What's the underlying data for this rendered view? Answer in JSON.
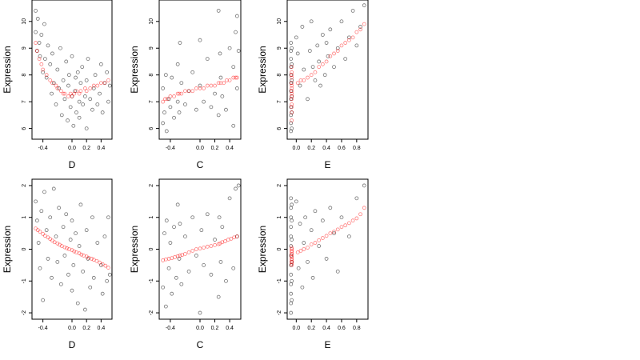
{
  "chart_data": [
    {
      "type": "scatter",
      "xlabel": "D",
      "ylabel": "Expression",
      "xlim": [
        -0.55,
        0.55
      ],
      "ylim": [
        5.6,
        10.8
      ],
      "xticks": [
        -0.4,
        0.0,
        0.2,
        0.4
      ],
      "xtick_labels": [
        "-0.4",
        "0.0",
        "0.2",
        "0.4"
      ],
      "yticks": [
        6,
        7,
        8,
        9,
        10
      ],
      "ytick_labels": [
        "6",
        "7",
        "8",
        "9",
        "10"
      ],
      "series": [
        {
          "color": "#000000",
          "x": [
            -0.5,
            -0.5,
            -0.48,
            -0.47,
            -0.45,
            -0.44,
            -0.42,
            -0.4,
            -0.38,
            -0.37,
            -0.35,
            -0.33,
            -0.3,
            -0.28,
            -0.27,
            -0.25,
            -0.22,
            -0.2,
            -0.18,
            -0.16,
            -0.14,
            -0.12,
            -0.1,
            -0.08,
            -0.06,
            -0.05,
            -0.04,
            -0.02,
            0.0,
            0.0,
            0.02,
            0.04,
            0.05,
            0.06,
            0.08,
            0.1,
            0.1,
            0.12,
            0.14,
            0.15,
            0.18,
            0.2,
            0.2,
            0.22,
            0.25,
            0.28,
            0.3,
            0.32,
            0.35,
            0.38,
            0.4,
            0.42,
            0.45,
            0.48,
            0.5,
            0.52
          ],
          "y": [
            10.4,
            9.6,
            8.9,
            10.1,
            9.2,
            8.7,
            9.5,
            8.1,
            9.9,
            8.6,
            7.9,
            9.1,
            8.4,
            7.3,
            8.8,
            7.7,
            6.9,
            8.2,
            7.5,
            9.0,
            6.5,
            7.8,
            7.1,
            8.5,
            6.3,
            7.6,
            8.0,
            6.8,
            7.2,
            8.7,
            6.1,
            7.4,
            7.9,
            6.6,
            8.1,
            7.0,
            6.4,
            7.7,
            8.3,
            6.9,
            7.2,
            6.0,
            7.8,
            8.6,
            7.1,
            6.7,
            7.5,
            8.0,
            6.9,
            7.3,
            8.4,
            6.6,
            7.7,
            8.1,
            7.0,
            7.6
          ]
        },
        {
          "color": "#ff0000",
          "x": [
            -0.5,
            -0.48,
            -0.45,
            -0.42,
            -0.4,
            -0.35,
            -0.3,
            -0.27,
            -0.22,
            -0.2,
            -0.15,
            -0.12,
            -0.1,
            -0.05,
            -0.02,
            0.0,
            0.03,
            0.06,
            0.1,
            0.12,
            0.18,
            0.2,
            0.25,
            0.3,
            0.35,
            0.4,
            0.45,
            0.5
          ],
          "y": [
            9.2,
            8.9,
            8.6,
            8.4,
            8.2,
            8.0,
            7.8,
            7.7,
            7.6,
            7.5,
            7.4,
            7.3,
            7.3,
            7.2,
            7.3,
            7.2,
            7.3,
            7.4,
            7.3,
            7.4,
            7.5,
            7.4,
            7.5,
            7.6,
            7.6,
            7.7,
            7.7,
            7.8
          ]
        }
      ]
    },
    {
      "type": "scatter",
      "xlabel": "C",
      "ylabel": "Expression",
      "xlim": [
        -0.55,
        0.55
      ],
      "ylim": [
        5.6,
        10.8
      ],
      "xticks": [
        -0.4,
        0.0,
        0.2,
        0.4
      ],
      "xtick_labels": [
        "-0.4",
        "0.0",
        "0.2",
        "0.4"
      ],
      "yticks": [
        6,
        7,
        8,
        9,
        10
      ],
      "ytick_labels": [
        "6",
        "7",
        "8",
        "9",
        "10"
      ],
      "series": [
        {
          "color": "#000000",
          "x": [
            -0.5,
            -0.5,
            -0.48,
            -0.46,
            -0.45,
            -0.42,
            -0.4,
            -0.38,
            -0.35,
            -0.3,
            -0.3,
            -0.28,
            -0.27,
            -0.25,
            -0.2,
            -0.15,
            -0.1,
            -0.05,
            0.0,
            0.0,
            0.05,
            0.1,
            0.15,
            0.2,
            0.25,
            0.25,
            0.27,
            0.28,
            0.3,
            0.35,
            0.4,
            0.45,
            0.45,
            0.48,
            0.5,
            0.5,
            0.52
          ],
          "y": [
            6.2,
            7.5,
            6.6,
            8.0,
            5.9,
            7.1,
            6.8,
            7.9,
            6.4,
            8.4,
            7.0,
            6.6,
            9.2,
            7.7,
            6.9,
            7.4,
            8.1,
            6.7,
            7.6,
            9.3,
            7.0,
            8.6,
            6.8,
            7.3,
            10.4,
            6.5,
            8.8,
            7.9,
            7.2,
            6.7,
            9.0,
            6.1,
            8.3,
            9.6,
            10.2,
            7.5,
            8.9
          ]
        },
        {
          "color": "#ff0000",
          "x": [
            -0.5,
            -0.47,
            -0.44,
            -0.4,
            -0.35,
            -0.3,
            -0.28,
            -0.25,
            -0.2,
            -0.15,
            -0.1,
            -0.05,
            0.0,
            0.05,
            0.1,
            0.15,
            0.2,
            0.25,
            0.28,
            0.32,
            0.36,
            0.4,
            0.45,
            0.48,
            0.5
          ],
          "y": [
            7.0,
            7.1,
            7.1,
            7.2,
            7.2,
            7.3,
            7.3,
            7.3,
            7.4,
            7.4,
            7.4,
            7.5,
            7.5,
            7.5,
            7.6,
            7.6,
            7.6,
            7.7,
            7.7,
            7.7,
            7.8,
            7.8,
            7.9,
            7.9,
            7.9
          ]
        }
      ]
    },
    {
      "type": "scatter",
      "xlabel": "E",
      "ylabel": "Expression",
      "xlim": [
        -0.12,
        0.95
      ],
      "ylim": [
        5.6,
        10.8
      ],
      "xticks": [
        0.0,
        0.2,
        0.4,
        0.6,
        0.8
      ],
      "xtick_labels": [
        "0.0",
        "0.2",
        "0.4",
        "0.6",
        "0.8"
      ],
      "yticks": [
        6,
        7,
        8,
        9,
        10
      ],
      "ytick_labels": [
        "6",
        "7",
        "8",
        "9",
        "10"
      ],
      "series": [
        {
          "color": "#000000",
          "x": [
            -0.07,
            -0.07,
            -0.07,
            -0.07,
            -0.07,
            -0.07,
            -0.07,
            -0.07,
            -0.07,
            -0.07,
            -0.07,
            -0.07,
            -0.06,
            -0.06,
            -0.06,
            -0.06,
            -0.06,
            -0.06,
            0.0,
            0.02,
            0.05,
            0.08,
            0.1,
            0.15,
            0.18,
            0.2,
            0.22,
            0.25,
            0.28,
            0.3,
            0.32,
            0.35,
            0.38,
            0.4,
            0.42,
            0.45,
            0.5,
            0.55,
            0.6,
            0.65,
            0.7,
            0.75,
            0.8,
            0.85,
            0.9
          ],
          "y": [
            5.9,
            6.2,
            6.5,
            6.8,
            7.1,
            7.4,
            7.7,
            8.0,
            8.3,
            8.6,
            8.9,
            9.2,
            6.0,
            6.6,
            7.2,
            7.8,
            8.4,
            9.0,
            9.4,
            8.8,
            7.6,
            9.8,
            8.2,
            7.1,
            8.9,
            10.0,
            8.3,
            7.8,
            9.1,
            8.5,
            7.6,
            9.5,
            8.0,
            9.2,
            8.7,
            9.7,
            8.3,
            9.0,
            10.0,
            8.6,
            9.4,
            10.4,
            9.1,
            9.8,
            10.6
          ]
        },
        {
          "color": "#ff0000",
          "x": [
            -0.06,
            -0.06,
            -0.06,
            -0.06,
            -0.06,
            -0.06,
            -0.06,
            -0.06,
            -0.06,
            -0.06,
            -0.06,
            -0.06,
            -0.06,
            -0.06,
            -0.06,
            0.02,
            0.06,
            0.1,
            0.15,
            0.2,
            0.25,
            0.3,
            0.35,
            0.4,
            0.45,
            0.5,
            0.55,
            0.6,
            0.65,
            0.7,
            0.75,
            0.8,
            0.85,
            0.9
          ],
          "y": [
            6.3,
            6.6,
            6.9,
            7.1,
            7.3,
            7.5,
            7.7,
            7.9,
            8.1,
            8.3,
            7.2,
            7.6,
            8.0,
            6.8,
            7.4,
            7.7,
            7.8,
            7.8,
            7.9,
            8.0,
            8.1,
            8.3,
            8.4,
            8.5,
            8.7,
            8.8,
            8.9,
            9.1,
            9.2,
            9.3,
            9.4,
            9.6,
            9.7,
            9.9
          ]
        }
      ]
    },
    {
      "type": "scatter",
      "xlabel": "D",
      "ylabel": "Expression",
      "xlim": [
        -0.55,
        0.55
      ],
      "ylim": [
        -2.2,
        2.2
      ],
      "xticks": [
        -0.4,
        0.0,
        0.2,
        0.4
      ],
      "xtick_labels": [
        "-0.4",
        "0.0",
        "0.2",
        "0.4"
      ],
      "yticks": [
        -2,
        -1,
        0,
        1,
        2
      ],
      "ytick_labels": [
        "-2",
        "-1",
        "0",
        "1",
        "2"
      ],
      "series": [
        {
          "color": "#000000",
          "x": [
            -0.5,
            -0.48,
            -0.46,
            -0.44,
            -0.42,
            -0.4,
            -0.38,
            -0.35,
            -0.33,
            -0.3,
            -0.28,
            -0.25,
            -0.22,
            -0.2,
            -0.18,
            -0.15,
            -0.12,
            -0.1,
            -0.08,
            -0.05,
            -0.02,
            0.0,
            0.0,
            0.02,
            0.05,
            0.08,
            0.1,
            0.12,
            0.15,
            0.18,
            0.2,
            0.22,
            0.25,
            0.28,
            0.3,
            0.35,
            0.4,
            0.42,
            0.45,
            0.48,
            0.5,
            0.52
          ],
          "y": [
            1.5,
            0.9,
            0.2,
            -0.6,
            1.2,
            -1.6,
            1.8,
            0.6,
            -0.3,
            1.0,
            -0.9,
            1.9,
            0.4,
            -0.4,
            1.3,
            -1.1,
            0.7,
            -0.2,
            1.1,
            -0.8,
            0.3,
            -1.3,
            0.9,
            -0.5,
            0.5,
            -1.7,
            0.1,
            1.4,
            -0.7,
            -1.9,
            0.6,
            -0.3,
            -1.2,
            1.0,
            -0.9,
            0.2,
            -0.5,
            -1.4,
            0.4,
            -1.0,
            1.0,
            -0.8
          ]
        },
        {
          "color": "#ff0000",
          "x": [
            -0.5,
            -0.47,
            -0.44,
            -0.4,
            -0.37,
            -0.33,
            -0.3,
            -0.27,
            -0.24,
            -0.2,
            -0.17,
            -0.14,
            -0.1,
            -0.07,
            -0.04,
            0.0,
            0.03,
            0.06,
            0.1,
            0.13,
            0.16,
            0.2,
            0.23,
            0.27,
            0.3,
            0.34,
            0.38,
            0.42,
            0.46,
            0.5
          ],
          "y": [
            0.65,
            0.6,
            0.55,
            0.48,
            0.42,
            0.37,
            0.32,
            0.27,
            0.22,
            0.18,
            0.14,
            0.1,
            0.06,
            0.03,
            0.0,
            -0.03,
            -0.07,
            -0.1,
            -0.13,
            -0.17,
            -0.2,
            -0.23,
            -0.27,
            -0.3,
            -0.33,
            -0.37,
            -0.42,
            -0.47,
            -0.52,
            -0.58
          ]
        }
      ]
    },
    {
      "type": "scatter",
      "xlabel": "C",
      "ylabel": "Expression",
      "xlim": [
        -0.55,
        0.55
      ],
      "ylim": [
        -2.2,
        2.2
      ],
      "xticks": [
        -0.4,
        0.0,
        0.2,
        0.4
      ],
      "xtick_labels": [
        "-0.4",
        "0.0",
        "0.2",
        "0.4"
      ],
      "yticks": [
        -2,
        -1,
        0,
        1,
        2
      ],
      "ytick_labels": [
        "-2",
        "-1",
        "0",
        "1",
        "2"
      ],
      "series": [
        {
          "color": "#000000",
          "x": [
            -0.5,
            -0.48,
            -0.46,
            -0.45,
            -0.42,
            -0.4,
            -0.38,
            -0.35,
            -0.32,
            -0.3,
            -0.28,
            -0.27,
            -0.25,
            -0.2,
            -0.15,
            -0.1,
            -0.05,
            0.0,
            0.02,
            0.05,
            0.1,
            0.15,
            0.2,
            0.25,
            0.26,
            0.28,
            0.3,
            0.35,
            0.4,
            0.45,
            0.48,
            0.5,
            0.52
          ],
          "y": [
            -1.2,
            0.5,
            -1.8,
            0.9,
            -0.6,
            0.2,
            -1.4,
            0.7,
            -0.9,
            1.4,
            -0.3,
            0.8,
            -1.1,
            0.4,
            -0.7,
            1.0,
            -0.2,
            -2.0,
            0.6,
            -0.5,
            1.1,
            -0.8,
            0.3,
            -1.5,
            1.0,
            -0.4,
            0.7,
            -1.0,
            1.6,
            -0.6,
            1.9,
            0.4,
            2.0
          ]
        },
        {
          "color": "#ff0000",
          "x": [
            -0.5,
            -0.46,
            -0.42,
            -0.38,
            -0.34,
            -0.3,
            -0.27,
            -0.24,
            -0.2,
            -0.15,
            -0.1,
            -0.05,
            0.0,
            0.05,
            0.1,
            0.15,
            0.2,
            0.25,
            0.27,
            0.3,
            0.34,
            0.38,
            0.42,
            0.46,
            0.5
          ],
          "y": [
            -0.35,
            -0.32,
            -0.3,
            -0.28,
            -0.25,
            -0.22,
            -0.2,
            -0.18,
            -0.15,
            -0.1,
            -0.05,
            0.0,
            0.02,
            0.05,
            0.08,
            0.1,
            0.13,
            0.16,
            0.18,
            0.22,
            0.25,
            0.3,
            0.33,
            0.37,
            0.4
          ]
        }
      ]
    },
    {
      "type": "scatter",
      "xlabel": "E",
      "ylabel": "Expression",
      "xlim": [
        -0.12,
        0.95
      ],
      "ylim": [
        -2.2,
        2.2
      ],
      "xticks": [
        0.0,
        0.2,
        0.4,
        0.6,
        0.8
      ],
      "xtick_labels": [
        "0.0",
        "0.2",
        "0.4",
        "0.6",
        "0.8"
      ],
      "yticks": [
        -2,
        -1,
        0,
        1,
        2
      ],
      "ytick_labels": [
        "-2",
        "-1",
        "0",
        "1",
        "2"
      ],
      "series": [
        {
          "color": "#000000",
          "x": [
            -0.07,
            -0.07,
            -0.07,
            -0.07,
            -0.07,
            -0.07,
            -0.07,
            -0.07,
            -0.07,
            -0.07,
            -0.07,
            -0.07,
            -0.07,
            -0.06,
            -0.06,
            -0.06,
            -0.06,
            -0.06,
            -0.06,
            0.0,
            0.03,
            0.05,
            0.08,
            0.1,
            0.12,
            0.15,
            0.2,
            0.22,
            0.25,
            0.3,
            0.35,
            0.4,
            0.45,
            0.5,
            0.55,
            0.6,
            0.7,
            0.8,
            0.9
          ],
          "y": [
            -2.0,
            -1.7,
            -1.4,
            -1.1,
            -0.8,
            -0.5,
            -0.2,
            0.1,
            0.4,
            0.7,
            1.0,
            1.3,
            1.6,
            -1.6,
            -1.0,
            -0.4,
            0.3,
            0.9,
            1.4,
            1.5,
            -0.6,
            0.8,
            -1.2,
            0.2,
            1.0,
            -0.4,
            0.6,
            -0.9,
            1.2,
            0.1,
            0.9,
            -0.3,
            1.3,
            0.5,
            -0.7,
            1.0,
            0.4,
            1.6,
            2.0
          ]
        },
        {
          "color": "#ff0000",
          "x": [
            -0.06,
            -0.06,
            -0.06,
            -0.06,
            -0.06,
            -0.06,
            -0.06,
            -0.06,
            -0.06,
            -0.06,
            -0.06,
            -0.06,
            0.02,
            0.06,
            0.1,
            0.15,
            0.2,
            0.25,
            0.3,
            0.35,
            0.4,
            0.45,
            0.5,
            0.55,
            0.6,
            0.65,
            0.7,
            0.75,
            0.8,
            0.85,
            0.9
          ],
          "y": [
            -0.5,
            -0.4,
            -0.3,
            -0.2,
            -0.1,
            0.0,
            -0.35,
            -0.15,
            -0.45,
            -0.25,
            0.05,
            -0.05,
            -0.1,
            -0.05,
            0.0,
            0.05,
            0.15,
            0.2,
            0.28,
            0.35,
            0.42,
            0.5,
            0.55,
            0.62,
            0.7,
            0.75,
            0.82,
            0.9,
            0.97,
            1.1,
            1.3
          ]
        }
      ]
    }
  ]
}
